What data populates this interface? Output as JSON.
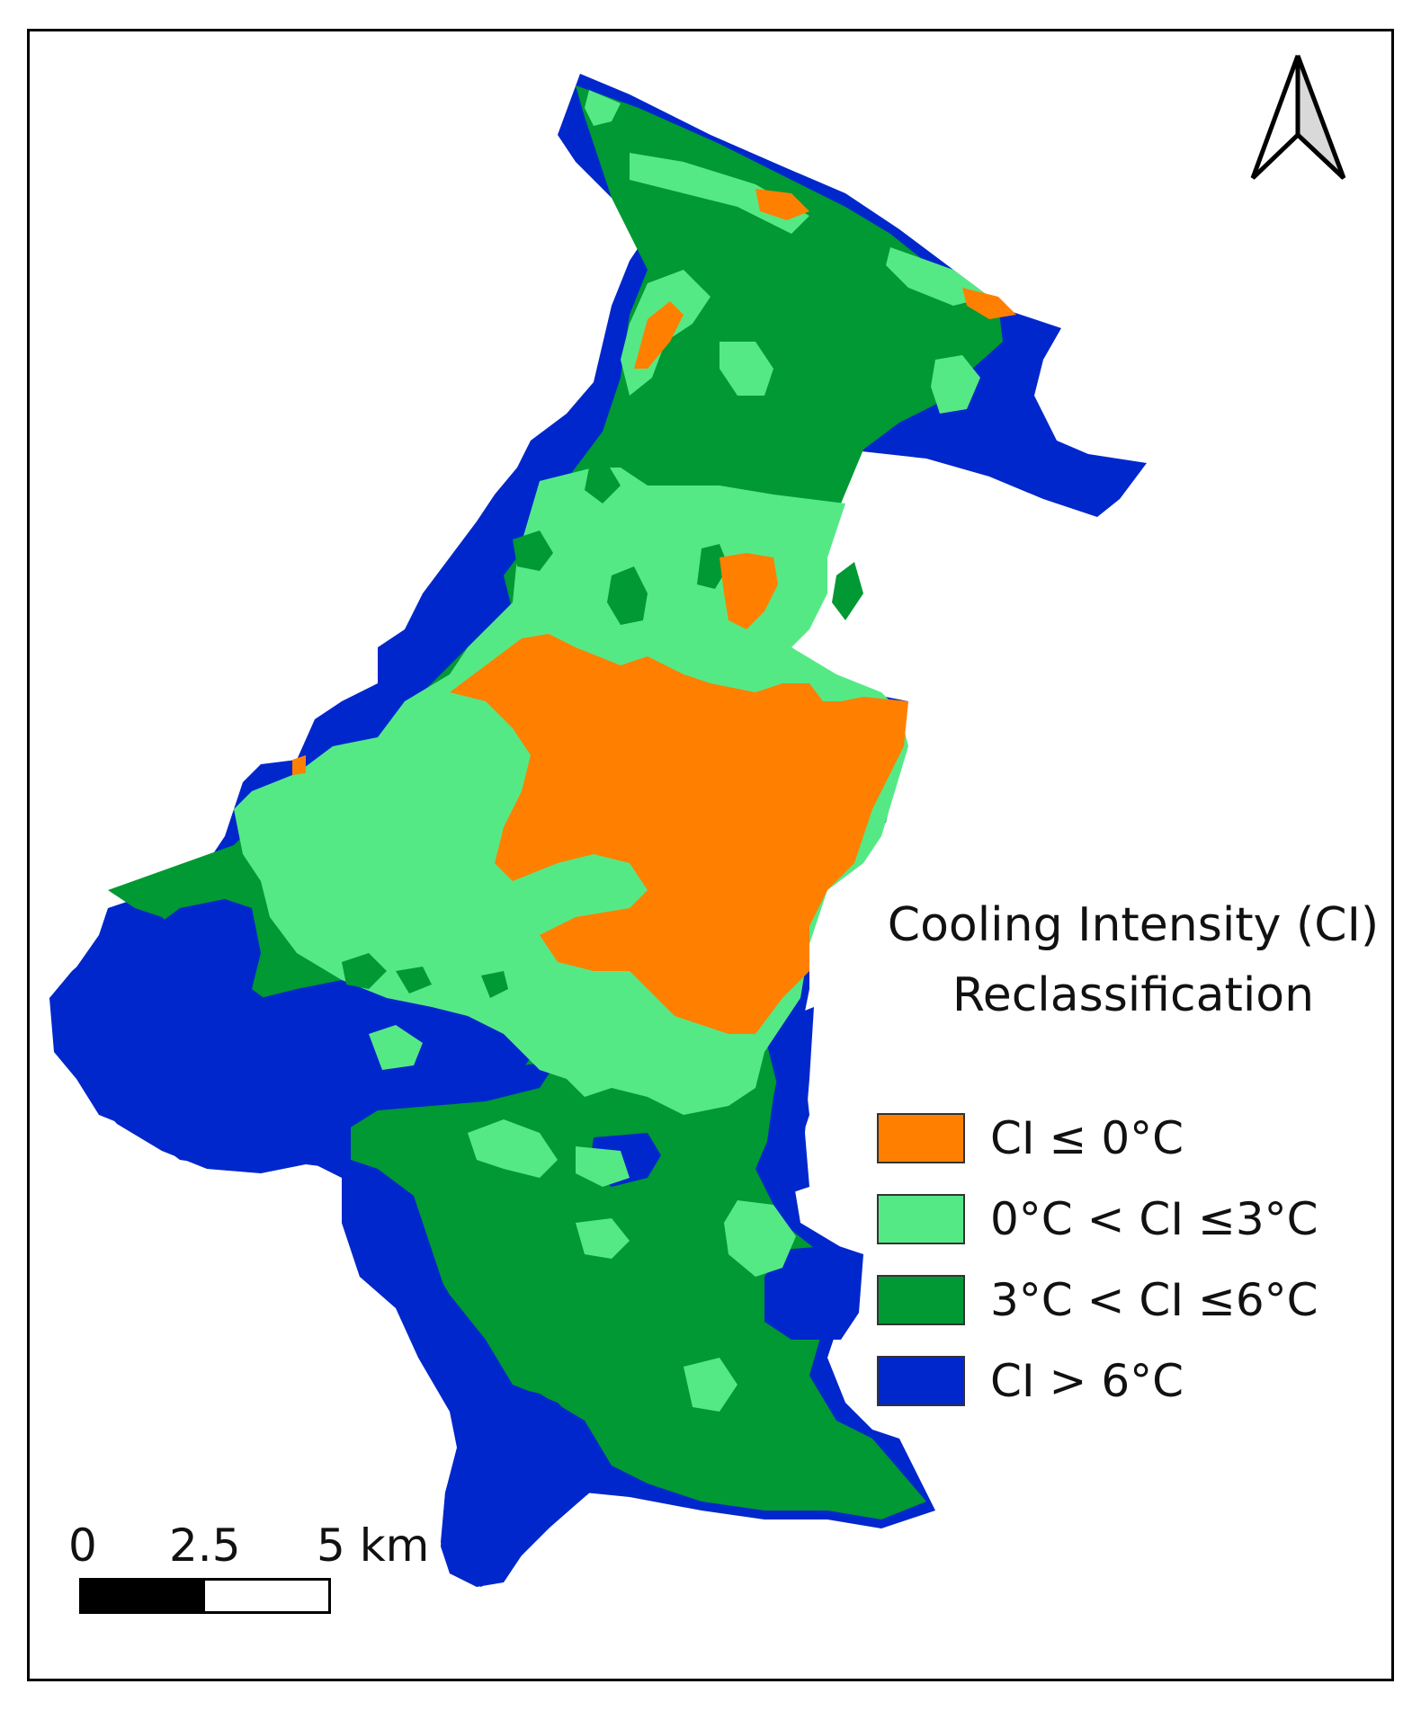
{
  "map": {
    "legend_title_line1": "Cooling Intensity (CI)",
    "legend_title_line2": "Reclassification",
    "legend": [
      {
        "label": "CI ≤ 0°C",
        "color": "#ff8000"
      },
      {
        "label": "0°C < CI ≤3°C",
        "color": "#55e986"
      },
      {
        "label": "3°C < CI ≤6°C",
        "color": "#009933"
      },
      {
        "label": "CI > 6°C",
        "color": "#0027cc"
      }
    ],
    "scale_bar": {
      "labels": [
        "0",
        "2.5",
        "5 km"
      ]
    },
    "north_arrow_icon": "north-arrow-icon"
  }
}
